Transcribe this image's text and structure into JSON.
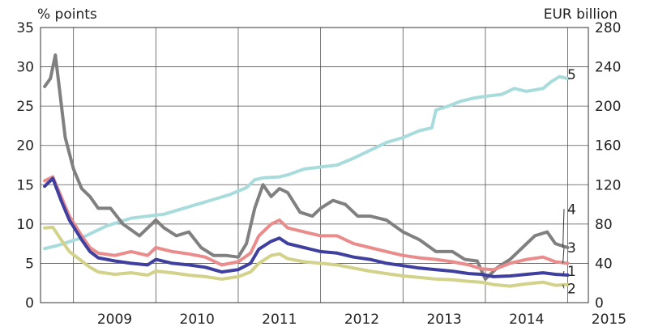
{
  "chart_data": {
    "type": "line",
    "left_axis_unit": "% points",
    "right_axis_unit": "EUR billion",
    "x_tick_labels": [
      "2009",
      "2010",
      "2011",
      "2012",
      "2013",
      "2014",
      "2015"
    ],
    "xlim": [
      2008.6,
      2015.25
    ],
    "ylim_left": [
      0,
      35
    ],
    "ylim_right": [
      0,
      280
    ],
    "y_ticks_left": [
      "0",
      "5",
      "10",
      "15",
      "20",
      "25",
      "30",
      "35"
    ],
    "y_ticks_right": [
      "0",
      "40",
      "80",
      "120",
      "160",
      "200",
      "240",
      "280"
    ],
    "grid": true,
    "series": [
      {
        "name": "1",
        "axis": "left",
        "color": "#3f3f9f",
        "x": [
          2008.65,
          2008.75,
          2008.85,
          2008.95,
          2009.1,
          2009.2,
          2009.3,
          2009.5,
          2009.7,
          2009.9,
          2010.0,
          2010.2,
          2010.4,
          2010.6,
          2010.8,
          2011.0,
          2011.15,
          2011.25,
          2011.4,
          2011.5,
          2011.6,
          2011.8,
          2012.0,
          2012.2,
          2012.4,
          2012.6,
          2012.8,
          2013.0,
          2013.2,
          2013.4,
          2013.6,
          2013.8,
          2013.95,
          2014.1,
          2014.3,
          2014.5,
          2014.7,
          2014.85,
          2015.0
        ],
        "values": [
          14.8,
          15.8,
          13.0,
          10.5,
          8.0,
          6.5,
          5.7,
          5.3,
          5.0,
          4.8,
          5.5,
          5.0,
          4.8,
          4.5,
          3.9,
          4.2,
          5.0,
          6.8,
          7.8,
          8.2,
          7.5,
          7.0,
          6.5,
          6.3,
          5.8,
          5.5,
          5.0,
          4.7,
          4.4,
          4.2,
          4.0,
          3.7,
          3.6,
          3.3,
          3.4,
          3.6,
          3.8,
          3.6,
          3.5
        ]
      },
      {
        "name": "2",
        "axis": "left",
        "color": "#d2d28a",
        "x": [
          2008.65,
          2008.75,
          2008.85,
          2008.95,
          2009.1,
          2009.2,
          2009.3,
          2009.5,
          2009.7,
          2009.9,
          2010.0,
          2010.2,
          2010.4,
          2010.6,
          2010.8,
          2011.0,
          2011.15,
          2011.25,
          2011.4,
          2011.5,
          2011.6,
          2011.8,
          2012.0,
          2012.2,
          2012.4,
          2012.6,
          2012.8,
          2013.0,
          2013.2,
          2013.4,
          2013.6,
          2013.8,
          2013.95,
          2014.1,
          2014.3,
          2014.5,
          2014.7,
          2014.85,
          2015.0
        ],
        "values": [
          9.5,
          9.6,
          8.0,
          6.5,
          5.3,
          4.5,
          3.9,
          3.6,
          3.8,
          3.5,
          4.0,
          3.8,
          3.5,
          3.3,
          3.0,
          3.3,
          3.9,
          5.0,
          6.0,
          6.2,
          5.6,
          5.2,
          5.0,
          4.8,
          4.4,
          4.0,
          3.7,
          3.4,
          3.2,
          3.0,
          2.9,
          2.7,
          2.6,
          2.3,
          2.1,
          2.4,
          2.6,
          2.2,
          2.3
        ]
      },
      {
        "name": "3",
        "axis": "left",
        "color": "#ea8c8c",
        "x": [
          2008.65,
          2008.75,
          2008.85,
          2008.95,
          2009.1,
          2009.2,
          2009.3,
          2009.5,
          2009.7,
          2009.9,
          2010.0,
          2010.2,
          2010.4,
          2010.6,
          2010.8,
          2011.0,
          2011.15,
          2011.25,
          2011.4,
          2011.5,
          2011.6,
          2011.8,
          2012.0,
          2012.2,
          2012.4,
          2012.6,
          2012.8,
          2013.0,
          2013.2,
          2013.4,
          2013.6,
          2013.8,
          2013.95,
          2014.1,
          2014.3,
          2014.5,
          2014.7,
          2014.85,
          2015.0
        ],
        "values": [
          15.5,
          16.0,
          13.5,
          11.0,
          8.5,
          7.0,
          6.3,
          6.0,
          6.5,
          6.0,
          7.0,
          6.5,
          6.2,
          5.8,
          4.8,
          5.2,
          6.3,
          8.5,
          10.0,
          10.5,
          9.5,
          9.0,
          8.5,
          8.5,
          7.5,
          7.0,
          6.5,
          6.0,
          5.7,
          5.5,
          5.2,
          4.8,
          4.3,
          4.2,
          5.0,
          5.5,
          5.8,
          5.2,
          5.0
        ]
      },
      {
        "name": "4",
        "axis": "left",
        "color": "#808080",
        "x": [
          2008.65,
          2008.72,
          2008.78,
          2008.82,
          2008.9,
          2009.0,
          2009.1,
          2009.2,
          2009.3,
          2009.45,
          2009.6,
          2009.8,
          2010.0,
          2010.1,
          2010.25,
          2010.4,
          2010.55,
          2010.7,
          2010.85,
          2011.0,
          2011.1,
          2011.2,
          2011.3,
          2011.4,
          2011.5,
          2011.6,
          2011.75,
          2011.9,
          2012.0,
          2012.15,
          2012.3,
          2012.45,
          2012.6,
          2012.8,
          2013.0,
          2013.2,
          2013.4,
          2013.6,
          2013.75,
          2013.9,
          2014.0,
          2014.15,
          2014.3,
          2014.45,
          2014.6,
          2014.75,
          2014.85,
          2015.0
        ],
        "values": [
          27.5,
          28.5,
          31.5,
          28.0,
          21.0,
          17.0,
          14.5,
          13.5,
          12.0,
          12.0,
          10.0,
          8.5,
          10.5,
          9.5,
          8.5,
          9.0,
          7.0,
          6.0,
          6.0,
          5.8,
          7.5,
          12.0,
          15.0,
          13.5,
          14.5,
          14.0,
          11.5,
          11.0,
          12.0,
          13.0,
          12.5,
          11.0,
          11.0,
          10.5,
          9.0,
          8.0,
          6.5,
          6.5,
          5.5,
          5.3,
          3.0,
          4.5,
          5.5,
          7.0,
          8.5,
          9.0,
          7.5,
          7.0
        ]
      },
      {
        "name": "5",
        "axis": "right",
        "color": "#a8dcdc",
        "x": [
          2008.65,
          2008.8,
          2008.95,
          2009.1,
          2009.25,
          2009.4,
          2009.55,
          2009.7,
          2009.9,
          2010.1,
          2010.3,
          2010.5,
          2010.7,
          2010.9,
          2011.1,
          2011.2,
          2011.3,
          2011.5,
          2011.6,
          2011.8,
          2012.0,
          2012.2,
          2012.4,
          2012.6,
          2012.8,
          2013.0,
          2013.2,
          2013.35,
          2013.4,
          2013.55,
          2013.7,
          2013.85,
          2014.0,
          2014.2,
          2014.35,
          2014.5,
          2014.7,
          2014.8,
          2014.9,
          2015.0
        ],
        "values": [
          55,
          58,
          62,
          66,
          72,
          78,
          82,
          86,
          88,
          90,
          95,
          100,
          105,
          110,
          117,
          125,
          127,
          128,
          130,
          136,
          138,
          140,
          147,
          155,
          163,
          168,
          175,
          178,
          196,
          200,
          205,
          208,
          210,
          212,
          218,
          215,
          218,
          225,
          230,
          228
        ]
      }
    ],
    "label_y": {
      "1": 3.5,
      "2": 1.3,
      "3": 6.5,
      "4": 11.4,
      "5": 28.5
    }
  }
}
